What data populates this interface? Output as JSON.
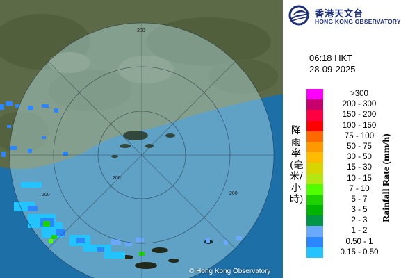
{
  "map": {
    "range_rings": [
      {
        "label": "200"
      },
      {
        "label": "200"
      },
      {
        "label": "200"
      },
      {
        "label": "200"
      }
    ],
    "copyright": "© Hong Kong Observatory"
  },
  "logo": {
    "name_zh": "香港天文台",
    "name_en": "HONG KONG OBSERVATORY"
  },
  "timestamp": {
    "time": "06:18 HKT",
    "date": "28-09-2025"
  },
  "legend": {
    "title_zh": "降雨率(毫米/小時)",
    "title_en": "Rainfall Rate (mm/h)",
    "entries": [
      {
        "label": ">300",
        "color": "#ff00ff"
      },
      {
        "label": "200 - 300",
        "color": "#c8006e"
      },
      {
        "label": "150 - 200",
        "color": "#ff0040"
      },
      {
        "label": "100 - 150",
        "color": "#ff0000"
      },
      {
        "label": "75 - 100",
        "color": "#ff6a00"
      },
      {
        "label": "50 - 75",
        "color": "#ff9900"
      },
      {
        "label": "30 - 50",
        "color": "#ffbb00"
      },
      {
        "label": "15 - 30",
        "color": "#d8d400"
      },
      {
        "label": "10 - 15",
        "color": "#b4e614"
      },
      {
        "label": "7 - 10",
        "color": "#50ff00"
      },
      {
        "label": "5 - 7",
        "color": "#1ed200"
      },
      {
        "label": "3 - 5",
        "color": "#00b400"
      },
      {
        "label": "2 - 3",
        "color": "#009646"
      },
      {
        "label": "1 - 2",
        "color": "#6aa9ff"
      },
      {
        "label": "0.50 - 1",
        "color": "#2a87ff"
      },
      {
        "label": "0.15 - 0.50",
        "color": "#22c3ff"
      }
    ]
  }
}
